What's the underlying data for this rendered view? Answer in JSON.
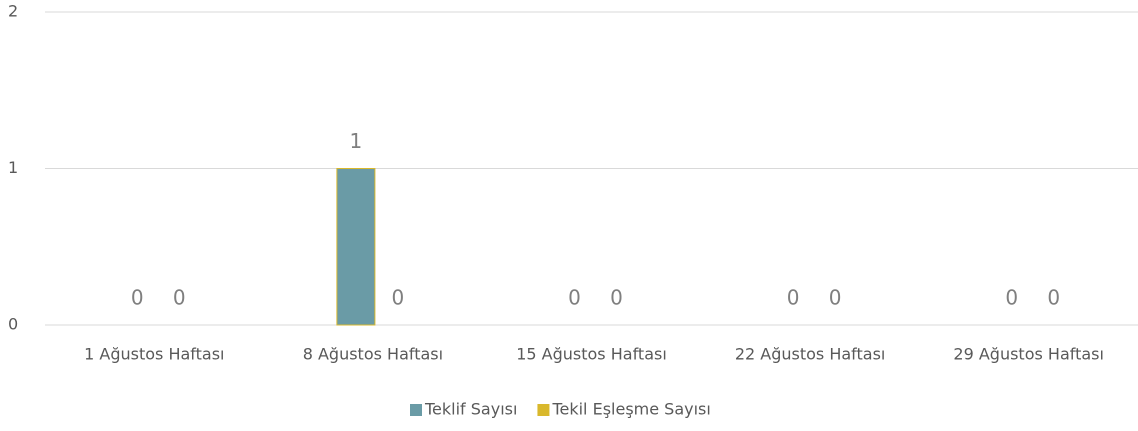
{
  "chart_data": {
    "type": "bar",
    "categories": [
      "1 Ağustos Haftası",
      "8 Ağustos Haftası",
      "15 Ağustos Haftası",
      "22 Ağustos Haftası",
      "29 Ağustos Haftası"
    ],
    "series": [
      {
        "name": "Teklif Sayısı",
        "color": "#6a9ba6",
        "values": [
          0,
          1,
          0,
          0,
          0
        ]
      },
      {
        "name": "Tekil Eşleşme Sayısı",
        "color": "#d9b82c",
        "values": [
          0,
          0,
          0,
          0,
          0
        ]
      }
    ],
    "ylim": [
      0,
      2
    ],
    "yticks": [
      0,
      1,
      2
    ],
    "grid": true,
    "legend": "bottom",
    "data_labels": true
  }
}
